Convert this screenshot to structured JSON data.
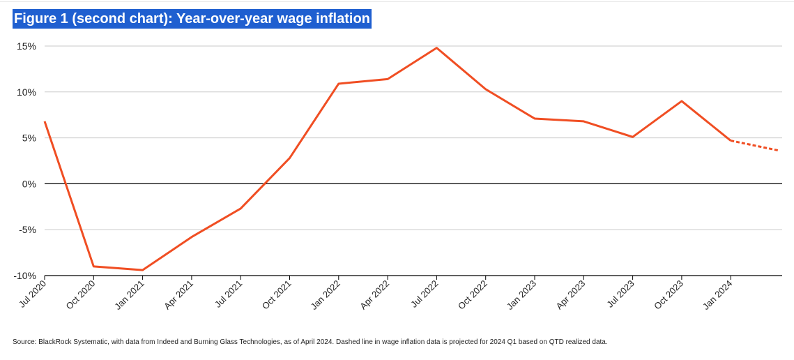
{
  "title": "Figure 1 (second chart): Year-over-year wage inflation",
  "source": "Source: BlackRock Systematic, with data from Indeed and Burning Glass Technologies, as of April 2024. Dashed line in wage inflation data is projected for 2024 Q1 based on QTD realized data.",
  "colors": {
    "line": "#f04e23",
    "grid": "#c8c8c8",
    "zero": "#000000",
    "title_bg": "#1f5fd0"
  },
  "chart_data": {
    "type": "line",
    "categories": [
      "Jul 2020",
      "Oct 2020",
      "Jan 2021",
      "Apr 2021",
      "Jul 2021",
      "Oct 2021",
      "Jan 2022",
      "Apr 2022",
      "Jul 2022",
      "Oct 2022",
      "Jan 2023",
      "Apr 2023",
      "Jul 2023",
      "Oct 2023",
      "Jan 2024"
    ],
    "y_ticks": [
      "15%",
      "10%",
      "5%",
      "0%",
      "-5%",
      "-10%"
    ],
    "y_tick_values": [
      15,
      10,
      5,
      0,
      -5,
      -10
    ],
    "ylim": [
      -10,
      15
    ],
    "grid": true,
    "series": [
      {
        "values": [
          6.8,
          -9.0,
          -9.4,
          -5.8,
          -2.7,
          2.8,
          10.9,
          11.4,
          14.8,
          10.3,
          7.1,
          6.8,
          5.1,
          9.0,
          4.7
        ],
        "style": "solid"
      },
      {
        "x": [
          "Jan 2024",
          "Apr 2024"
        ],
        "values": [
          4.7,
          3.6
        ],
        "style": "dashed",
        "note": "projected"
      }
    ]
  }
}
